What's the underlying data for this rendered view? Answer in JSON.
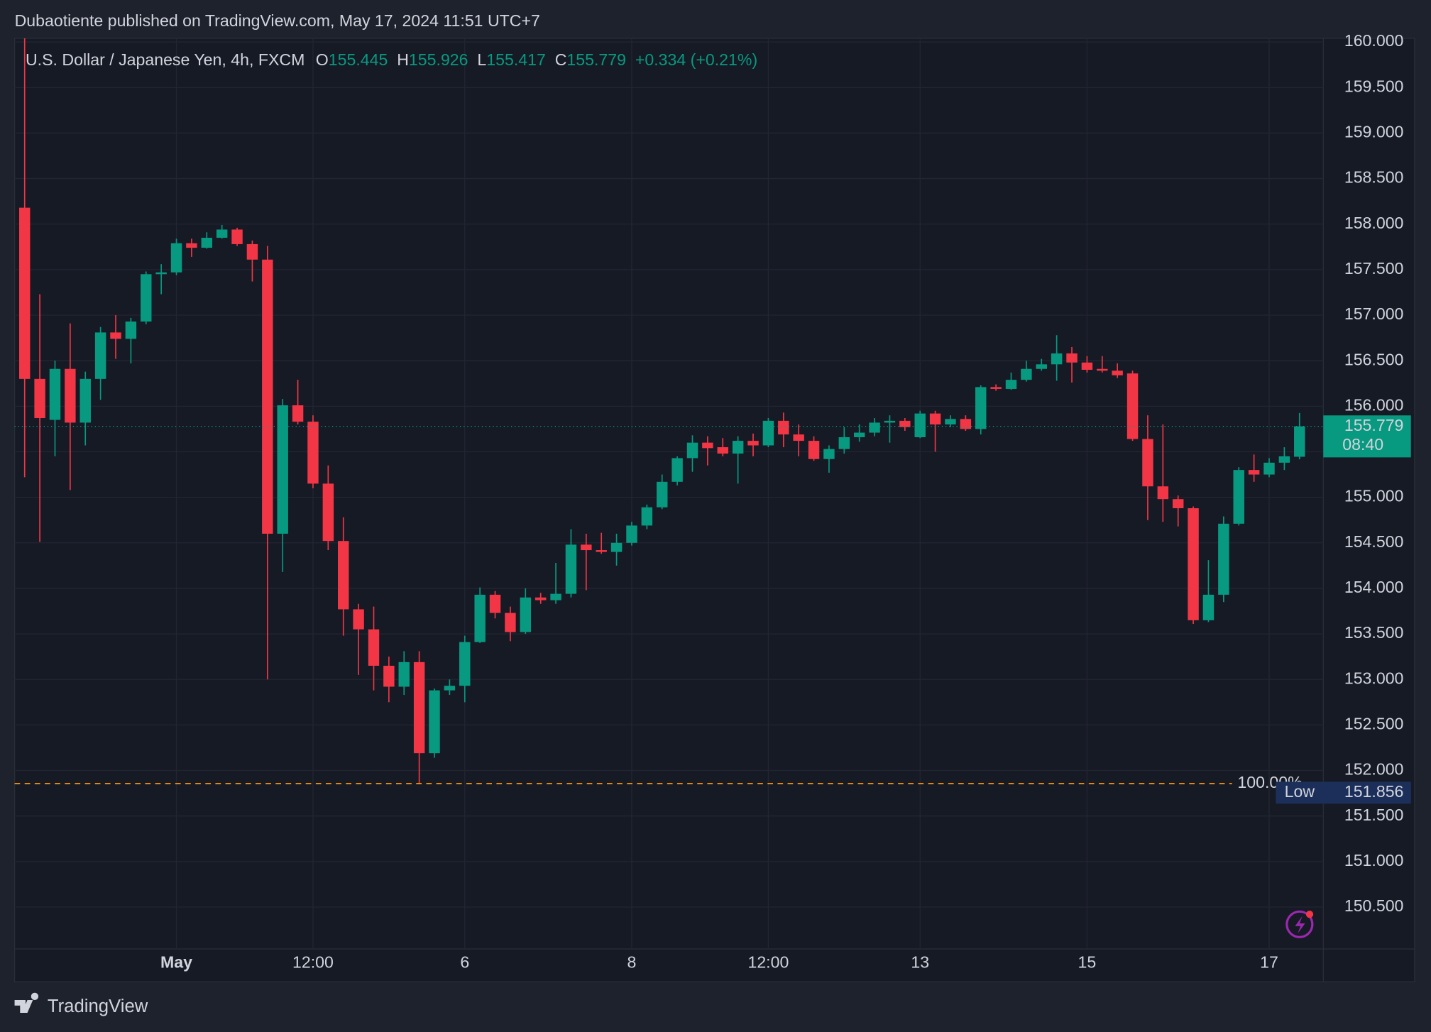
{
  "attribution": "Dubaotiente published on TradingView.com, May 17, 2024 11:51 UTC+7",
  "footer": "TradingView",
  "chart_data": {
    "type": "candlestick",
    "title": "U.S. Dollar / Japanese Yen, 4h, FXCM",
    "ohlc_labels": [
      "O",
      "H",
      "L",
      "C"
    ],
    "change": "+0.334 (+0.21%)",
    "countdown": "08:40",
    "low_label": "Low",
    "low_index": 26,
    "fib_label": "100.00%",
    "up_color": "#089981",
    "down_color": "#f23645",
    "fib_color": "#ff9800",
    "grid": true,
    "ylim": [
      150.04,
      160.04
    ],
    "yticks": [
      {
        "value": 150.5,
        "label": "150.500"
      },
      {
        "value": 151,
        "label": "151.000"
      },
      {
        "value": 151.5,
        "label": "151.500"
      },
      {
        "value": 152,
        "label": "152.000"
      },
      {
        "value": 152.5,
        "label": "152.500"
      },
      {
        "value": 153,
        "label": "153.000"
      },
      {
        "value": 153.5,
        "label": "153.500"
      },
      {
        "value": 154,
        "label": "154.000"
      },
      {
        "value": 154.5,
        "label": "154.500"
      },
      {
        "value": 155,
        "label": "155.000"
      },
      {
        "value": 155.5,
        "label": "155.500"
      },
      {
        "value": 156,
        "label": "156.000"
      },
      {
        "value": 156.5,
        "label": "156.500"
      },
      {
        "value": 157,
        "label": "157.000"
      },
      {
        "value": 157.5,
        "label": "157.500"
      },
      {
        "value": 158,
        "label": "158.000"
      },
      {
        "value": 158.5,
        "label": "158.500"
      },
      {
        "value": 159,
        "label": "159.000"
      },
      {
        "value": 159.5,
        "label": "159.500"
      },
      {
        "value": 160,
        "label": "160.000"
      }
    ],
    "categories": [
      null,
      null,
      null,
      null,
      null,
      null,
      null,
      null,
      null,
      null,
      "May",
      null,
      null,
      null,
      null,
      null,
      null,
      null,
      null,
      "12:00",
      null,
      null,
      null,
      null,
      null,
      null,
      null,
      null,
      null,
      "6",
      null,
      null,
      null,
      null,
      null,
      null,
      null,
      null,
      null,
      null,
      "8",
      null,
      null,
      null,
      null,
      null,
      null,
      null,
      null,
      "12:00",
      null,
      null,
      null,
      null,
      null,
      null,
      null,
      null,
      null,
      "13",
      null,
      null,
      null,
      null,
      null,
      null,
      null,
      null,
      null,
      null,
      "15",
      null,
      null,
      null,
      null,
      null,
      null,
      null,
      null,
      null,
      null,
      null,
      "17",
      null,
      null
    ],
    "open": [
      158.18,
      156.3,
      155.85,
      156.41,
      155.82,
      156.3,
      156.81,
      156.74,
      156.93,
      157.45,
      157.47,
      157.79,
      157.74,
      157.85,
      157.94,
      157.78,
      157.61,
      154.6,
      156.01,
      155.83,
      155.15,
      154.52,
      153.77,
      153.55,
      153.15,
      152.92,
      153.19,
      152.19,
      152.88,
      152.93,
      153.41,
      153.93,
      153.73,
      153.52,
      153.9,
      153.87,
      153.94,
      154.48,
      154.42,
      154.4,
      154.5,
      154.69,
      154.89,
      155.17,
      155.43,
      155.6,
      155.55,
      155.48,
      155.62,
      155.57,
      155.84,
      155.69,
      155.62,
      155.42,
      155.53,
      155.66,
      155.71,
      155.82,
      155.84,
      155.66,
      155.92,
      155.8,
      155.86,
      155.75,
      156.21,
      156.19,
      156.29,
      156.41,
      156.46,
      156.58,
      156.48,
      156.41,
      156.39,
      156.36,
      155.64,
      155.12,
      154.98,
      154.88,
      153.65,
      153.93,
      154.71,
      155.3,
      155.25,
      155.38,
      155.445
    ],
    "high": [
      160.3,
      157.23,
      156.5,
      156.91,
      156.38,
      156.87,
      157.0,
      156.97,
      157.48,
      157.56,
      157.84,
      157.84,
      157.91,
      157.99,
      157.96,
      157.82,
      157.76,
      156.08,
      156.29,
      155.9,
      155.35,
      154.78,
      153.83,
      153.8,
      153.25,
      153.31,
      153.31,
      152.9,
      153.0,
      153.48,
      154.01,
      153.97,
      153.8,
      154.0,
      153.95,
      154.28,
      154.65,
      154.6,
      154.61,
      154.6,
      154.73,
      154.92,
      155.25,
      155.45,
      155.68,
      155.67,
      155.65,
      155.67,
      155.7,
      155.87,
      155.93,
      155.8,
      155.67,
      155.57,
      155.77,
      155.8,
      155.87,
      155.9,
      155.87,
      155.95,
      155.95,
      155.9,
      155.9,
      156.23,
      156.24,
      156.37,
      156.5,
      156.52,
      156.78,
      156.65,
      156.55,
      156.55,
      156.47,
      156.39,
      155.9,
      155.8,
      155.02,
      154.9,
      154.31,
      154.79,
      155.33,
      155.47,
      155.43,
      155.55,
      155.926
    ],
    "low": [
      155.22,
      154.51,
      155.45,
      155.08,
      155.57,
      156.07,
      156.52,
      156.47,
      156.9,
      157.23,
      157.44,
      157.64,
      157.73,
      157.84,
      157.76,
      157.37,
      153.0,
      154.18,
      155.8,
      155.1,
      154.42,
      153.48,
      153.05,
      152.88,
      152.75,
      152.83,
      151.856,
      152.14,
      152.83,
      152.75,
      153.4,
      153.67,
      153.42,
      153.5,
      153.83,
      153.83,
      153.9,
      153.98,
      154.38,
      154.25,
      154.47,
      154.65,
      154.87,
      155.13,
      155.28,
      155.35,
      155.45,
      155.15,
      155.45,
      155.55,
      155.55,
      155.45,
      155.4,
      155.27,
      155.48,
      155.61,
      155.67,
      155.6,
      155.73,
      155.65,
      155.5,
      155.77,
      155.73,
      155.69,
      156.17,
      156.18,
      156.27,
      156.39,
      156.28,
      156.26,
      156.37,
      156.37,
      156.31,
      155.62,
      154.75,
      154.73,
      154.68,
      153.61,
      153.63,
      153.85,
      154.69,
      155.17,
      155.22,
      155.3,
      155.417
    ],
    "close": [
      156.3,
      155.87,
      156.41,
      155.82,
      156.3,
      156.81,
      156.74,
      156.93,
      157.45,
      157.47,
      157.79,
      157.74,
      157.85,
      157.94,
      157.78,
      157.61,
      154.6,
      156.01,
      155.83,
      155.15,
      154.52,
      153.77,
      153.55,
      153.15,
      152.92,
      153.19,
      152.19,
      152.88,
      152.93,
      153.41,
      153.93,
      153.73,
      153.52,
      153.9,
      153.87,
      153.94,
      154.48,
      154.42,
      154.4,
      154.5,
      154.69,
      154.89,
      155.17,
      155.43,
      155.6,
      155.54,
      155.48,
      155.62,
      155.57,
      155.84,
      155.69,
      155.62,
      155.42,
      155.53,
      155.66,
      155.71,
      155.82,
      155.84,
      155.77,
      155.92,
      155.8,
      155.86,
      155.75,
      156.21,
      156.19,
      156.29,
      156.41,
      156.46,
      156.58,
      156.48,
      156.4,
      156.39,
      156.34,
      155.64,
      155.12,
      154.98,
      154.88,
      153.65,
      153.93,
      154.71,
      155.3,
      155.25,
      155.38,
      155.45,
      155.779
    ]
  }
}
